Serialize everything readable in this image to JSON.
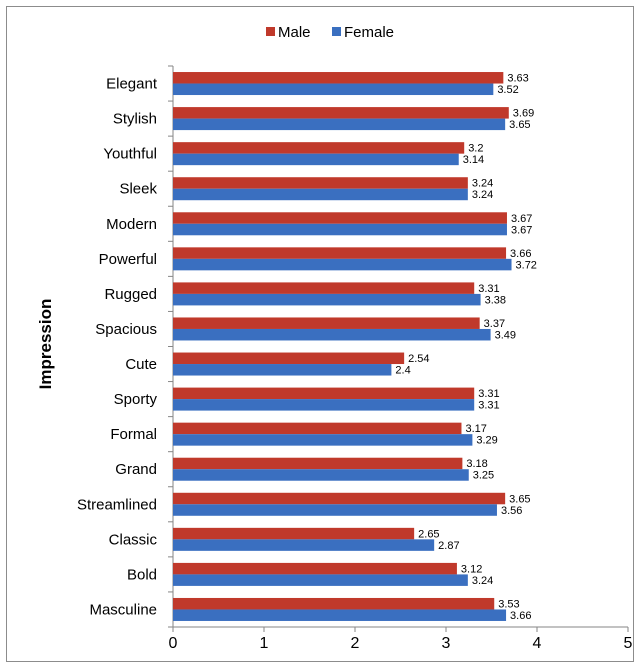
{
  "chart_data": {
    "type": "bar",
    "orientation": "horizontal",
    "categories": [
      "Elegant",
      "Stylish",
      "Youthful",
      "Sleek",
      "Modern",
      "Powerful",
      "Rugged",
      "Spacious",
      "Cute",
      "Sporty",
      "Formal",
      "Grand",
      "Streamlined",
      "Classic",
      "Bold",
      "Masculine"
    ],
    "series": [
      {
        "name": "Male",
        "color": "#c0392b",
        "values": [
          3.63,
          3.69,
          3.2,
          3.24,
          3.67,
          3.66,
          3.31,
          3.37,
          2.54,
          3.31,
          3.17,
          3.18,
          3.65,
          2.65,
          3.12,
          3.53
        ],
        "value_labels": [
          "3.63",
          "3.69",
          "3.2",
          "3.24",
          "3.67",
          "3.66",
          "3.31",
          "3.37",
          "2.54",
          "3.31",
          "3.17",
          "3.18",
          "3.65",
          "2.65",
          "3.12",
          "3.53"
        ]
      },
      {
        "name": "Female",
        "color": "#3a6fc0",
        "values": [
          3.52,
          3.65,
          3.14,
          3.24,
          3.67,
          3.72,
          3.38,
          3.49,
          2.4,
          3.31,
          3.29,
          3.25,
          3.56,
          2.87,
          3.24,
          3.66
        ],
        "value_labels": [
          "3.52",
          "3.65",
          "3.14",
          "3.24",
          "3.67",
          "3.72",
          "3.38",
          "3.49",
          "2.4",
          "3.31",
          "3.29",
          "3.25",
          "3.56",
          "2.87",
          "3.24",
          "3.66"
        ]
      }
    ],
    "ylabel": "Impression",
    "xlim": [
      0,
      5
    ],
    "xticks": [
      "0",
      "1",
      "2",
      "3",
      "4",
      "5"
    ],
    "legend_position": "top-center",
    "grid": false
  }
}
